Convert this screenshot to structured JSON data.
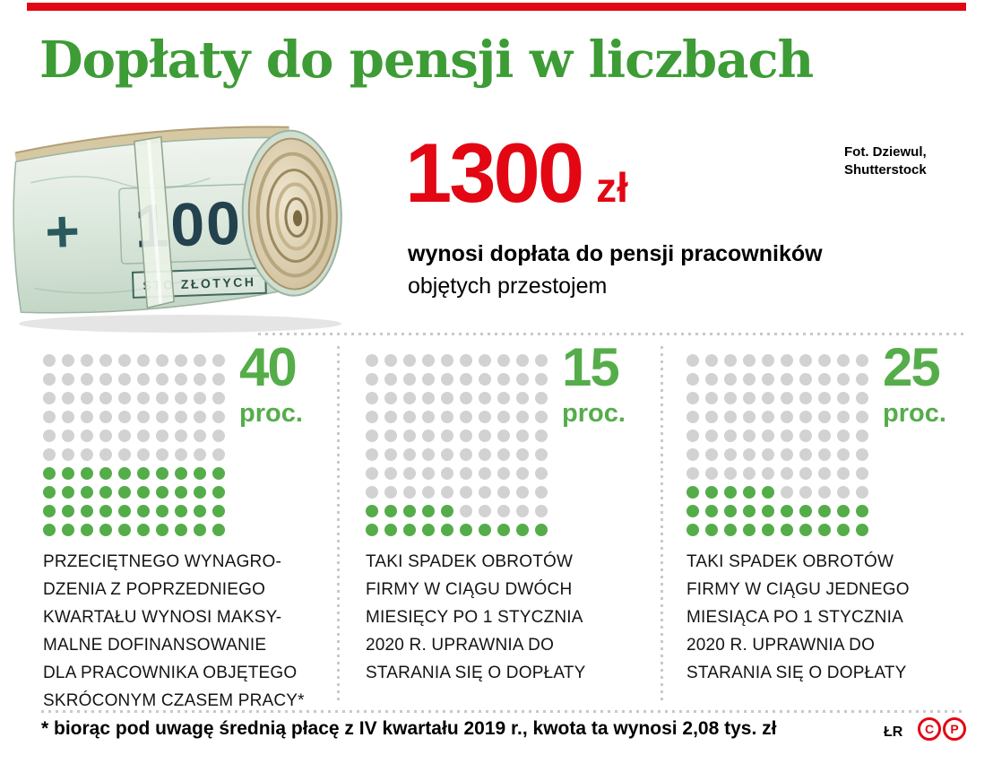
{
  "colors": {
    "red": "#e30613",
    "green": "#55ad4a",
    "green-dark": "#3d9c35",
    "dot-gray": "#d2d2d2",
    "divider": "#c9c9c9"
  },
  "header": {
    "title": "Dopłaty do pensji w liczbach",
    "photo_credit_lines": [
      "Fot. Dziewul,",
      "Shutterstock"
    ]
  },
  "highlight": {
    "amount": "1300",
    "currency": "zł",
    "caption_bold": "wynosi dopłata do pensji pracowników",
    "caption_regular": "objętych przestojem"
  },
  "photo": {
    "plus": "+",
    "denomination": "100",
    "denomination_text": "STO ZŁOTYCH"
  },
  "chart_data": {
    "type": "waffle",
    "title": "Dopłaty do pensji w liczbach",
    "grid": {
      "rows": 10,
      "cols": 10,
      "dot_total": 100
    },
    "highlight": {
      "value": 1300,
      "unit": "zł",
      "label": "wynosi dopłata do pensji pracowników objętych przestojem"
    },
    "series": [
      {
        "value": 40,
        "unit": "proc.",
        "description_lines": [
          "PRZECIĘTNEGO WYNAGRO-",
          "DZENIA Z POPRZEDNIEGO",
          "KWARTAŁU WYNOSI MAKSY-",
          "MALNE DOFINANSOWANIE",
          "DLA PRACOWNIKA OBJĘTEGO",
          "SKRÓCONYM CZASEM PRACY*"
        ]
      },
      {
        "value": 15,
        "unit": "proc.",
        "description_lines": [
          "TAKI SPADEK OBROTÓW",
          "FIRMY W CIĄGU DWÓCH",
          "MIESIĘCY PO 1 STYCZNIA",
          "2020 R. UPRAWNIA DO",
          "STARANIA SIĘ O DOPŁATY"
        ]
      },
      {
        "value": 25,
        "unit": "proc.",
        "description_lines": [
          "TAKI SPADEK OBROTÓW",
          "FIRMY W CIĄGU JEDNEGO",
          "MIESIĄCA PO 1 STYCZNIA",
          "2020 R. UPRAWNIA DO",
          "STARANIA SIĘ O DOPŁATY"
        ]
      }
    ]
  },
  "footnote": "* biorąc pod uwagę średnią płacę z IV kwartału 2019 r., kwota ta wynosi 2,08 tys. zł",
  "footer": {
    "initials": "ŁR",
    "copyright_marks": [
      "C",
      "P"
    ]
  }
}
